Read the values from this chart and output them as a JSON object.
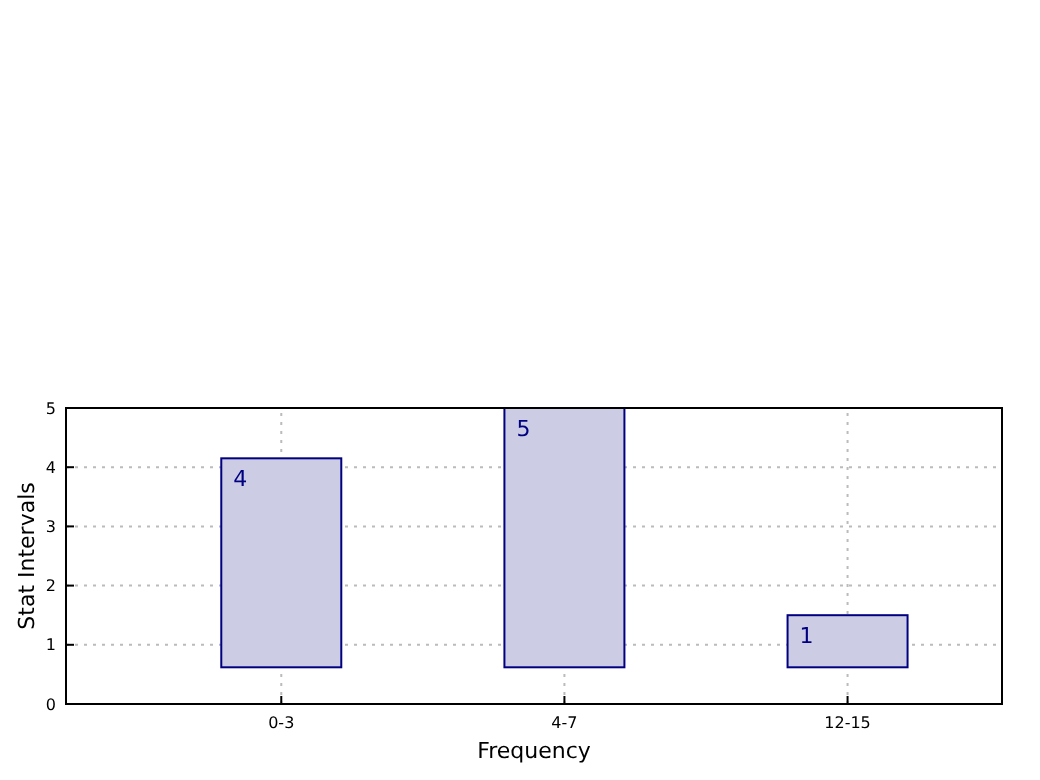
{
  "chart_data": {
    "type": "bar",
    "xlabel": "Frequency",
    "ylabel": "Stat Intervals",
    "categories": [
      "0-3",
      "4-7",
      "12-15"
    ],
    "values": [
      3.53,
      4.38,
      0.88
    ],
    "base": [
      0.62,
      0.62,
      0.62
    ],
    "value_labels": [
      "4",
      "5",
      "1"
    ],
    "color": "#cccce4",
    "ylim": [
      0,
      5
    ],
    "yticks": [
      0,
      1,
      2,
      3,
      4,
      5
    ],
    "grid": true
  }
}
